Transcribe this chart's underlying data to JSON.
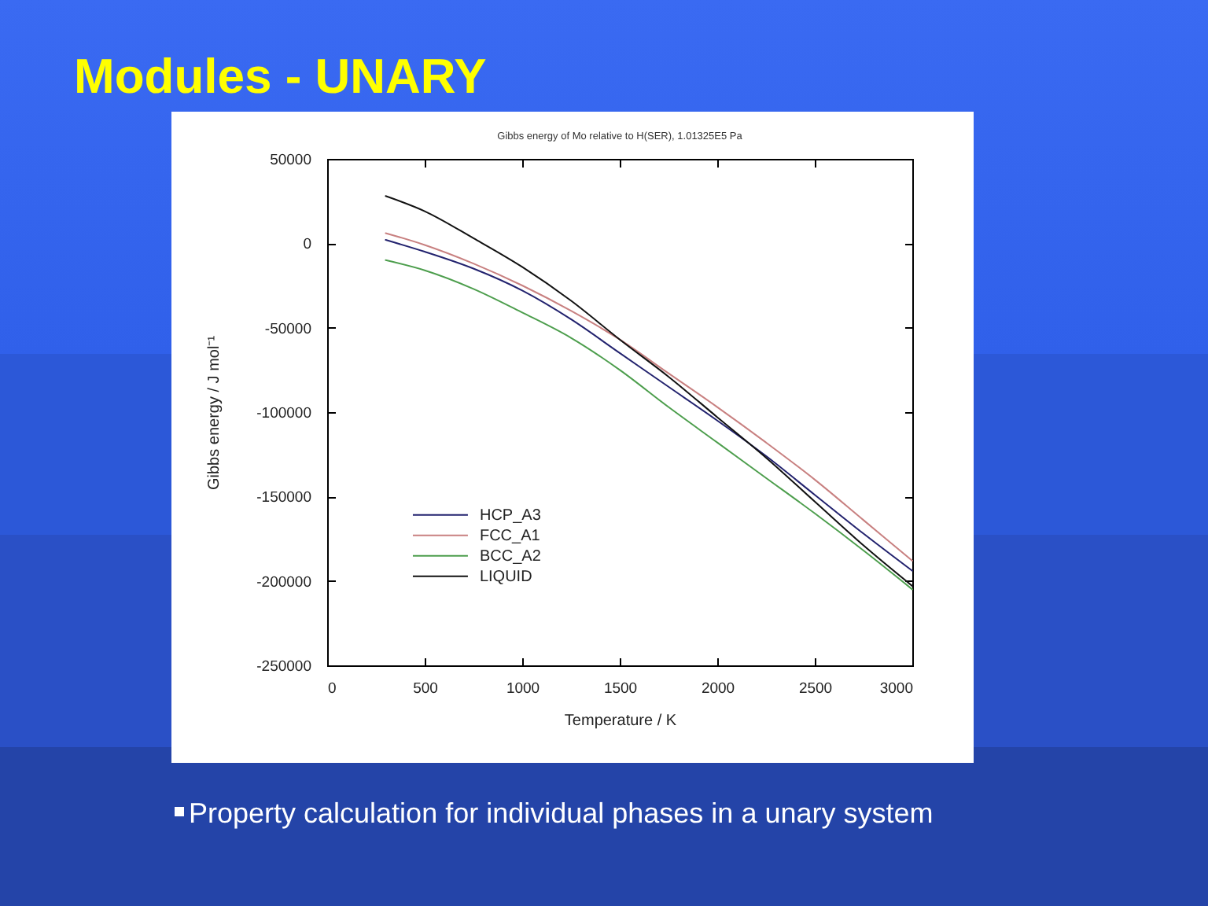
{
  "chart_data": {
    "type": "line",
    "title": "Modules - UNARY",
    "subtitle": "Gibbs energy of Mo relative to H(SER), 1.01325E5 Pa",
    "xlabel": "Temperature / K",
    "ylabel": "Gibbs energy / J mol⁻¹",
    "annotations": [
      "Property calculation for individual phases in a unary system"
    ],
    "x": [
      300,
      500,
      750,
      1000,
      1250,
      1500,
      1750,
      2000,
      2250,
      2500,
      2750,
      3000
    ],
    "series": [
      {
        "name": "HCP_A3",
        "color": "#22226e",
        "values": [
          2000,
          -5000,
          -15000,
          -28000,
          -45000,
          -65000,
          -85000,
          -105000,
          -126000,
          -149000,
          -172000,
          -194000
        ]
      },
      {
        "name": "FCC_A1",
        "color": "#c88080",
        "values": [
          6000,
          -1000,
          -12000,
          -25000,
          -40000,
          -57000,
          -77000,
          -97000,
          -118000,
          -140000,
          -164000,
          -188000
        ]
      },
      {
        "name": "BCC_A2",
        "color": "#4d9e4d",
        "values": [
          -10000,
          -16000,
          -27000,
          -41000,
          -56000,
          -75000,
          -97000,
          -118000,
          -139000,
          -160000,
          -182000,
          -205000
        ]
      },
      {
        "name": "LIQUID",
        "color": "#111111",
        "values": [
          28000,
          19000,
          3000,
          -14000,
          -34000,
          -57000,
          -79000,
          -103000,
          -127000,
          -153000,
          -179000,
          -203000
        ]
      }
    ],
    "xlim": [
      0,
      3000
    ],
    "ylim": [
      -250000,
      50000
    ],
    "xticks": [
      0,
      500,
      1000,
      1500,
      2000,
      2500,
      3000
    ],
    "yticks": [
      -250000,
      -200000,
      -150000,
      -100000,
      -50000,
      0,
      50000
    ],
    "grid": false,
    "legend": "bottom left"
  }
}
